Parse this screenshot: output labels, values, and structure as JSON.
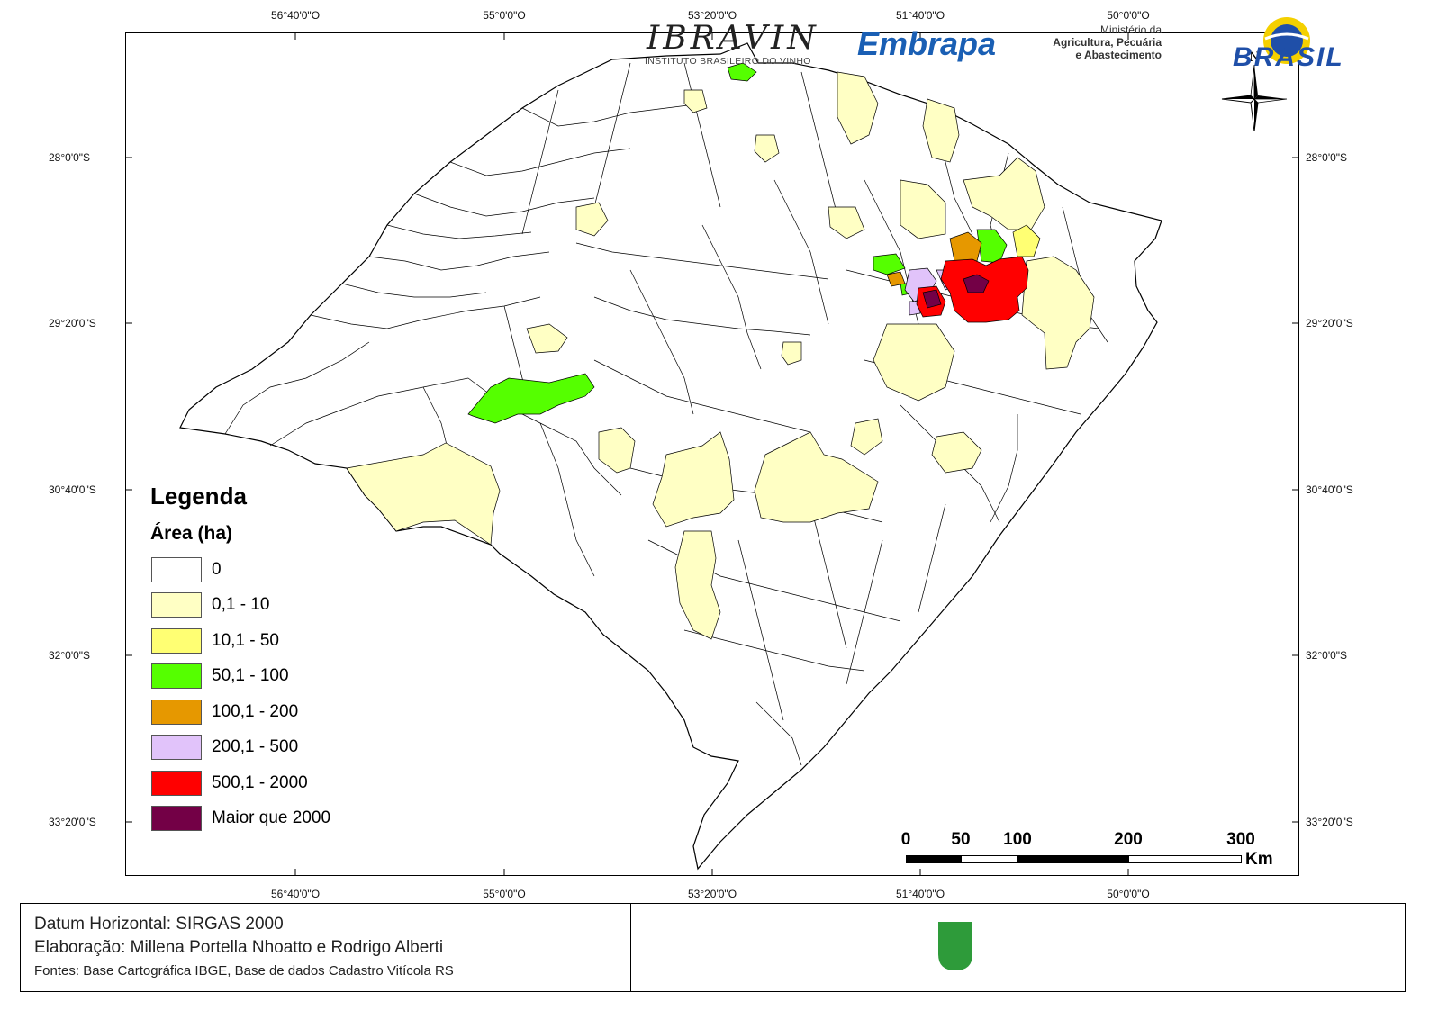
{
  "coordinates": {
    "longitude_labels": [
      "56°40'0\"O",
      "55°0'0\"O",
      "53°20'0\"O",
      "51°40'0\"O",
      "50°0'0\"O"
    ],
    "latitude_labels": [
      "28°0'0\"S",
      "29°20'0\"S",
      "30°40'0\"S",
      "32°0'0\"S",
      "33°20'0\"S"
    ]
  },
  "legend": {
    "title": "Legenda",
    "subtitle": "Área (ha)",
    "items": [
      {
        "label": "0",
        "color": "#ffffff"
      },
      {
        "label": "0,1 - 10",
        "color": "#ffffc4"
      },
      {
        "label": "10,1 - 50",
        "color": "#ffff73"
      },
      {
        "label": "50,1 - 100",
        "color": "#55ff00"
      },
      {
        "label": "100,1 - 200",
        "color": "#e69800"
      },
      {
        "label": "200,1 - 500",
        "color": "#e1c3fa"
      },
      {
        "label": "500,1 - 2000",
        "color": "#ff0000"
      },
      {
        "label": "Maior que 2000",
        "color": "#730046"
      }
    ]
  },
  "scalebar": {
    "labels": [
      "0",
      "50",
      "100",
      "200",
      "300"
    ],
    "unit": "Km"
  },
  "north_arrow": {
    "label": "N",
    "icon": "compass-rose-icon"
  },
  "footer": {
    "datum": "Datum Horizontal: SIRGAS 2000",
    "elaboracao": "Elaboração: Millena Portella Nhoatto e Rodrigo Alberti",
    "fontes": "Fontes: Base Cartográfica IBGE, Base de dados Cadastro Vitícola RS",
    "logos": {
      "ibravin": "IBRAVIN",
      "ibravin_sub": "INSTITUTO BRASILEIRO DO VINHO",
      "embrapa": "Embrapa",
      "ministerio_1": "Ministério da",
      "ministerio_2": "Agricultura, Pecuária",
      "ministerio_3": "e Abastecimento",
      "brasil": "BRASIL"
    }
  }
}
